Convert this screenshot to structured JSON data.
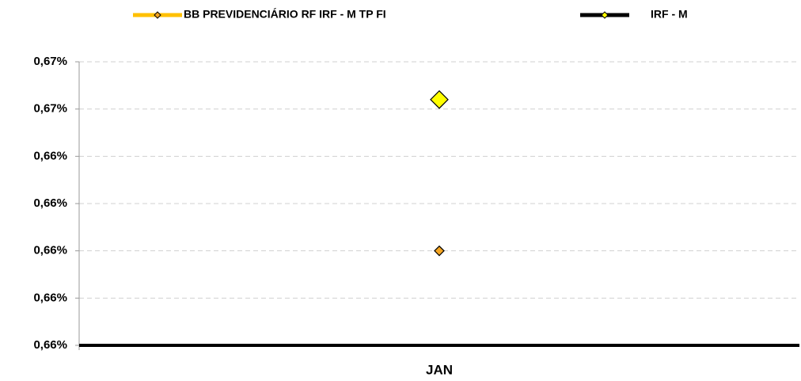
{
  "chart_data": {
    "type": "line",
    "categories": [
      "JAN"
    ],
    "series": [
      {
        "name": "BB PREVIDENCIÁRIO RF IRF - M TP FI",
        "color": "#FFC000",
        "marker_color": "#F5A623",
        "values": [
          0.66
        ]
      },
      {
        "name": "IRF - M",
        "color": "#000000",
        "marker_color": "#FFFF00",
        "values": [
          0.6664
        ]
      }
    ],
    "ylim": [
      0.656,
      0.668
    ],
    "yticks": [
      {
        "value": 0.656,
        "label": "0,66%"
      },
      {
        "value": 0.658,
        "label": "0,66%"
      },
      {
        "value": 0.66,
        "label": "0,66%"
      },
      {
        "value": 0.662,
        "label": "0,66%"
      },
      {
        "value": 0.664,
        "label": "0,66%"
      },
      {
        "value": 0.666,
        "label": "0,67%"
      },
      {
        "value": 0.668,
        "label": "0,67%"
      }
    ],
    "grid": true,
    "legend": "top"
  }
}
